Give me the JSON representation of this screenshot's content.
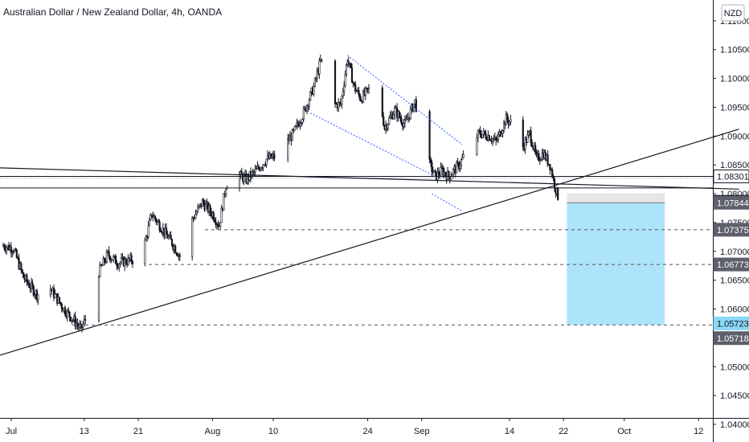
{
  "title": "Australian Dollar / New Zealand Dollar, 4h, OANDA",
  "currency_button": "NZD",
  "chart_data": {
    "type": "candlestick",
    "y_range": [
      1.03975,
      1.11235
    ],
    "y_ticks": [
      "1.11000",
      "1.10500",
      "1.10000",
      "1.09500",
      "1.09000",
      "1.08500",
      "1.08000",
      "1.07500",
      "1.07000",
      "1.06500",
      "1.06000",
      "1.05500",
      "1.05000",
      "1.04500",
      "1.04000"
    ],
    "x_ticks": [
      {
        "label": "Jul",
        "day": 0
      },
      {
        "label": "13",
        "day": 12
      },
      {
        "label": "21",
        "day": 20
      },
      {
        "label": "Aug",
        "day": 31
      },
      {
        "label": "10",
        "day": 40
      },
      {
        "label": "24",
        "day": 54
      },
      {
        "label": "Sep",
        "day": 62
      },
      {
        "label": "14",
        "day": 75
      },
      {
        "label": "22",
        "day": 83
      },
      {
        "label": "Oct",
        "day": 92
      },
      {
        "label": "12",
        "day": 103
      }
    ],
    "price_path": [
      [
        0,
        1.071
      ],
      [
        1.5,
        1.0705
      ],
      [
        3,
        1.0655
      ],
      [
        5,
        1.0625
      ],
      [
        7,
        1.0635
      ],
      [
        9,
        1.06
      ],
      [
        10.5,
        1.058
      ],
      [
        11.5,
        1.0565
      ],
      [
        12.5,
        1.059
      ],
      [
        14,
        1.066
      ],
      [
        15.5,
        1.0695
      ],
      [
        17,
        1.068
      ],
      [
        19,
        1.0685
      ],
      [
        20.5,
        1.069
      ],
      [
        22,
        1.0765
      ],
      [
        23.5,
        1.074
      ],
      [
        25,
        1.0715
      ],
      [
        26.5,
        1.0685
      ],
      [
        28,
        1.0755
      ],
      [
        29.5,
        1.0785
      ],
      [
        31,
        1.0765
      ],
      [
        32,
        1.0745
      ],
      [
        33,
        1.0815
      ],
      [
        34.5,
        1.0835
      ],
      [
        36,
        1.0825
      ],
      [
        37.5,
        1.084
      ],
      [
        39,
        1.086
      ],
      [
        40.5,
        1.0865
      ],
      [
        41.5,
        1.088
      ],
      [
        43,
        1.0905
      ],
      [
        44.5,
        1.094
      ],
      [
        46,
        1.0985
      ],
      [
        47,
        1.103
      ],
      [
        48,
        1.1005
      ],
      [
        49,
        1.0955
      ],
      [
        50,
        1.0955
      ],
      [
        51,
        1.1035
      ],
      [
        52,
        1.0985
      ],
      [
        53,
        1.0965
      ],
      [
        54.5,
        1.0985
      ],
      [
        55.5,
        1.098
      ],
      [
        56.5,
        1.0915
      ],
      [
        58,
        1.0945
      ],
      [
        59.5,
        1.092
      ],
      [
        61,
        1.096
      ],
      [
        62,
        1.0905
      ],
      [
        63,
        1.0855
      ],
      [
        64,
        1.083
      ],
      [
        65,
        1.084
      ],
      [
        66,
        1.083
      ],
      [
        67.5,
        1.085
      ],
      [
        69,
        1.088
      ],
      [
        70.5,
        1.0905
      ],
      [
        72,
        1.09
      ],
      [
        73,
        1.089
      ],
      [
        74.5,
        1.093
      ],
      [
        75.5,
        1.092
      ],
      [
        76.5,
        1.087
      ],
      [
        78,
        1.0905
      ],
      [
        79,
        1.086
      ],
      [
        80,
        1.087
      ],
      [
        81,
        1.085
      ],
      [
        81.8,
        1.081
      ],
      [
        82.3,
        1.079
      ],
      [
        82.8,
        1.0785
      ],
      [
        83.2,
        1.0786
      ]
    ],
    "horizontal_levels": [
      {
        "price": 1.083,
        "style": "solid",
        "color": "#131722"
      },
      {
        "price": 1.081,
        "style": "solid",
        "color": "#131722"
      },
      {
        "price": 1.07375,
        "style": "dashed",
        "color": "#555555"
      },
      {
        "price": 1.06773,
        "style": "dashed",
        "color": "#555555"
      },
      {
        "price": 1.05723,
        "style": "dashed",
        "color": "#555555"
      }
    ],
    "trend_lines": [
      {
        "from": [
          -1,
          1.0845
        ],
        "to": [
          109,
          1.0808
        ]
      },
      {
        "from": [
          -1,
          1.0518
        ],
        "to": [
          109,
          1.0912
        ]
      }
    ],
    "channel_lines": [
      {
        "from": [
          51,
          1.104
        ],
        "to": [
          68,
          1.0885
        ],
        "color": "#2962ff"
      },
      {
        "from": [
          45.5,
          1.094
        ],
        "to": [
          64,
          1.083
        ],
        "color": "#2962ff"
      },
      {
        "from": [
          63.5,
          1.08
        ],
        "to": [
          68,
          1.077
        ],
        "color": "#2962ff"
      }
    ],
    "position": {
      "start_day": 83.5,
      "end_day": 98,
      "entry": 1.07844,
      "stop": 1.0801,
      "target": 1.05723
    },
    "price_badges": [
      {
        "price": 1.08301,
        "label": "1.08301",
        "bg": "#ffffff",
        "fg": "#131722",
        "border": "#131722"
      },
      {
        "price": 1.07859,
        "label": "1.07859",
        "bg": "#131722",
        "fg": "#ffffff",
        "border": "#131722"
      },
      {
        "price": 1.07844,
        "label": "1.07844",
        "bg": "#5d606b",
        "fg": "#ffffff",
        "border": "#5d606b"
      },
      {
        "price": 1.07375,
        "label": "1.07375",
        "bg": "#5d606b",
        "fg": "#ffffff",
        "border": "#5d606b"
      },
      {
        "price": 1.06773,
        "label": "1.06773",
        "bg": "#5d606b",
        "fg": "#ffffff",
        "border": "#5d606b"
      },
      {
        "price": 1.05723,
        "label": "1.05723",
        "bg": "#8ad8f7",
        "fg": "#131722",
        "border": "#8ad8f7"
      },
      {
        "price": 1.05718,
        "label": "1.05718",
        "bg": "#5d606b",
        "fg": "#ffffff",
        "border": "#5d606b"
      }
    ],
    "colors": {
      "candle": "#131722",
      "target_zone": "#aee4fb",
      "stop_zone": "#e6e6e6"
    }
  }
}
